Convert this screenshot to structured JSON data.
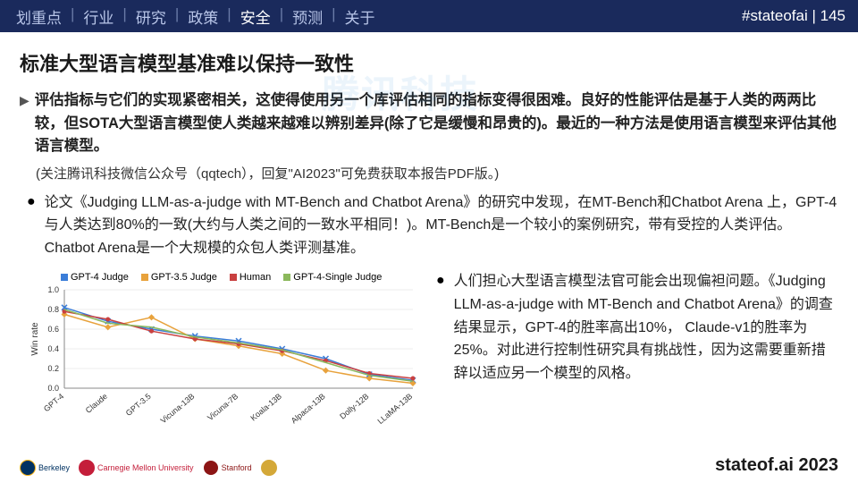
{
  "nav": {
    "items": [
      "划重点",
      "行业",
      "研究",
      "政策",
      "安全",
      "预测",
      "关于"
    ],
    "active_index": 4,
    "hashtag": "#stateofai | 145"
  },
  "watermark": "腾讯科技",
  "title": "标准大型语言模型基准难以保持一致性",
  "summary": "评估指标与它们的实现紧密相关，这使得使用另一个库评估相同的指标变得很困难。良好的性能评估是基于人类的两两比较，但SOTA大型语言模型使人类越来越难以辨别差异(除了它是缓慢和昂贵的)。最近的一种方法是使用语言模型来评估其他语言模型。",
  "note": "(关注腾讯科技微信公众号（qqtech），回复\"AI2023\"可免费获取本报告PDF版。)",
  "bullet1": "论文《Judging LLM-as-a-judge with MT-Bench and Chatbot Arena》的研究中发现，在MT-Bench和Chatbot Arena 上，GPT-4与人类达到80%的一致(大约与人类之间的一致水平相同！)。MT-Bench是一个较小的案例研究，带有受控的人类评估。Chatbot Arena是一个大规模的众包人类评测基准。",
  "bullet2": "人们担心大型语言模型法官可能会出现偏袒问题。《Judging LLM-as-a-judge with MT-Bench and Chatbot Arena》的调查结果显示，GPT-4的胜率高出10%， Claude-v1的胜率为25%。对此进行控制性研究具有挑战性，因为这需要重新措辞以适应另一个模型的风格。",
  "chart": {
    "type": "line",
    "ylabel": "Win rate",
    "ylim": [
      0,
      1.0
    ],
    "ytick_step": 0.2,
    "categories": [
      "GPT-4",
      "Claude",
      "GPT-3.5",
      "Vicuna-13B",
      "Vicuna-7B",
      "Koala-13B",
      "Alpaca-13B",
      "Dolly-12B",
      "LLaMA-13B"
    ],
    "series": [
      {
        "name": "GPT-4 Judge",
        "color": "#3b7dd8",
        "marker": "x",
        "values": [
          0.82,
          0.68,
          0.6,
          0.53,
          0.48,
          0.4,
          0.3,
          0.14,
          0.08
        ]
      },
      {
        "name": "GPT-3.5 Judge",
        "color": "#e8a23c",
        "marker": "diamond",
        "values": [
          0.75,
          0.62,
          0.72,
          0.5,
          0.43,
          0.35,
          0.18,
          0.1,
          0.05
        ]
      },
      {
        "name": "Human",
        "color": "#c94040",
        "marker": "circle",
        "values": [
          0.78,
          0.7,
          0.58,
          0.5,
          0.45,
          0.38,
          0.28,
          0.15,
          0.1
        ]
      },
      {
        "name": "GPT-4-Single Judge",
        "color": "#8bb85c",
        "marker": "none",
        "values": [
          0.8,
          0.66,
          0.62,
          0.52,
          0.46,
          0.39,
          0.26,
          0.13,
          0.07
        ]
      }
    ],
    "background_color": "#ffffff",
    "grid_color": "#dddddd",
    "axis_color": "#888888",
    "label_fontsize": 9
  },
  "footer": {
    "logos": [
      {
        "name": "Berkeley",
        "color1": "#003262",
        "color2": "#fdb515"
      },
      {
        "name": "Carnegie Mellon University",
        "color1": "#c41e3a",
        "color2": "#c41e3a"
      },
      {
        "name": "Stanford",
        "color1": "#8c1515",
        "color2": "#ffffff"
      },
      {
        "name": "Gold",
        "color1": "#d4a838",
        "color2": "#d4a838"
      }
    ],
    "text": "stateof.ai 2023"
  }
}
